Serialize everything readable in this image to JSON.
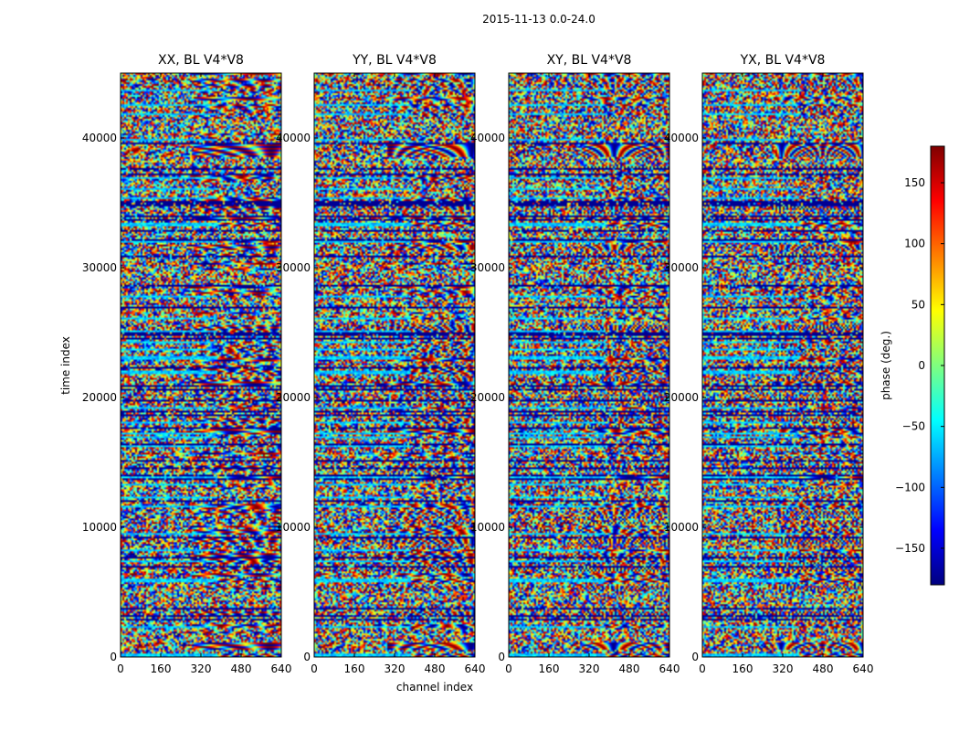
{
  "chart_data": {
    "type": "heatmap",
    "title": "2015-11-13 0.0-24.0",
    "xlabel": "channel index",
    "ylabel": "time index",
    "xlim": [
      0,
      640
    ],
    "ylim": [
      0,
      45000
    ],
    "x_ticks": [
      0,
      160,
      320,
      480,
      640
    ],
    "y_ticks": [
      0,
      10000,
      20000,
      30000,
      40000
    ],
    "panels": [
      {
        "title": "XX, BL V4*V8",
        "polarization": "XX"
      },
      {
        "title": "YY, BL V4*V8",
        "polarization": "YY"
      },
      {
        "title": "XY, BL V4*V8",
        "polarization": "XY"
      },
      {
        "title": "YX, BL V4*V8",
        "polarization": "YX"
      }
    ],
    "colorbar": {
      "label": "phase (deg.)",
      "range": [
        -180,
        180
      ],
      "ticks": [
        -150,
        -100,
        -50,
        0,
        50,
        100,
        150
      ],
      "colormap": "jet"
    }
  },
  "colors": {
    "jet": [
      "#00007f",
      "#0000ff",
      "#007fff",
      "#00ffff",
      "#7fff7f",
      "#ffff00",
      "#ff7f00",
      "#ff0000",
      "#7f0000"
    ]
  }
}
